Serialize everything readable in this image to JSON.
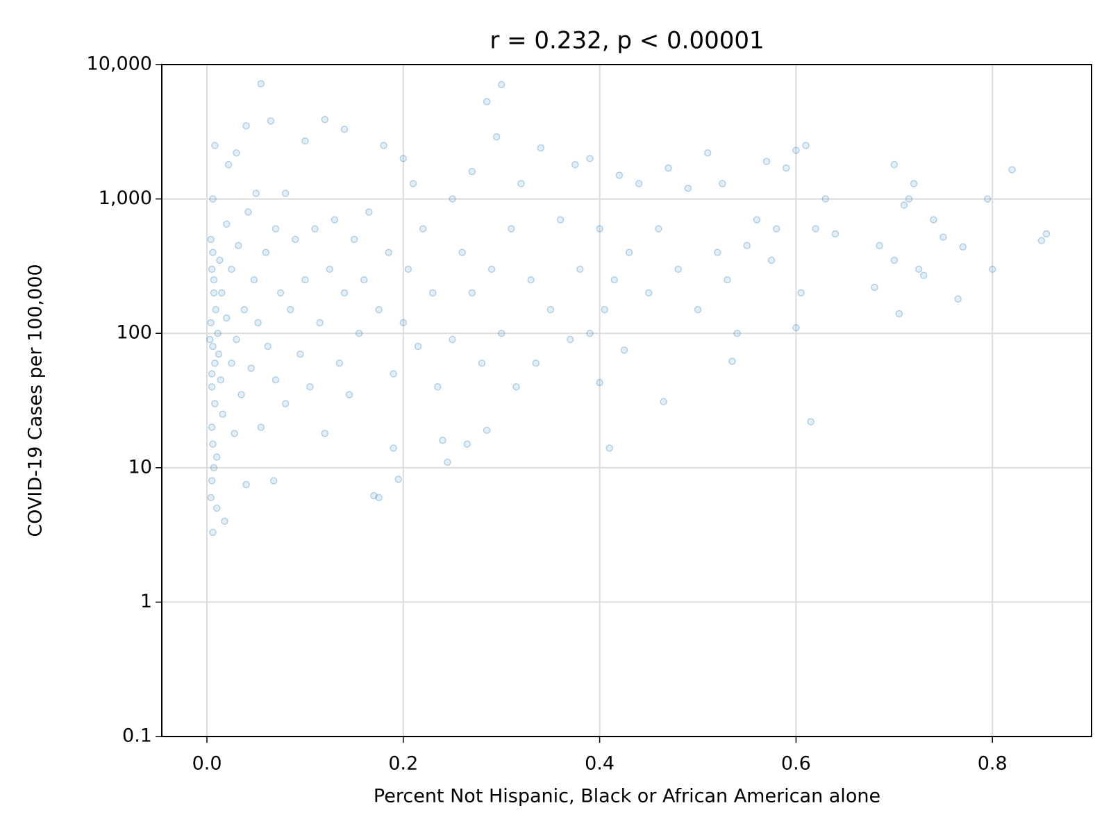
{
  "chart_data": {
    "type": "scatter",
    "title": "r = 0.232, p < 0.00001",
    "x_label": "Percent Not Hispanic, Black or African American alone",
    "y_label": "COVID-19 Cases per 100,000",
    "xlim": [
      -0.046,
      0.901
    ],
    "ylim": [
      0.1,
      10000
    ],
    "y_scale": "log",
    "grid": true,
    "xticks": [
      {
        "value": 0,
        "label": "0.0"
      },
      0.2,
      0.4,
      0.6,
      0.8
    ],
    "yticks": [
      0.1,
      1,
      10,
      100,
      {
        "value": 1000,
        "label": "1,000"
      },
      {
        "value": 10000,
        "label": "10,000"
      }
    ],
    "series": [
      {
        "color": "#1f77b4",
        "x": [
          0.005,
          0.006,
          0.004,
          0.007,
          0.005,
          0.006,
          0.008,
          0.005,
          0.006,
          0.007,
          0.004,
          0.006,
          0.008,
          0.009,
          0.003,
          0.005,
          0.007,
          0.004,
          0.006,
          0.008,
          0.005,
          0.01,
          0.012,
          0.011,
          0.013,
          0.01,
          0.015,
          0.014,
          0.016,
          0.018,
          0.02,
          0.02,
          0.022,
          0.025,
          0.025,
          0.028,
          0.03,
          0.03,
          0.032,
          0.035,
          0.038,
          0.04,
          0.04,
          0.042,
          0.045,
          0.048,
          0.05,
          0.052,
          0.055,
          0.055,
          0.06,
          0.062,
          0.065,
          0.068,
          0.07,
          0.07,
          0.075,
          0.08,
          0.08,
          0.085,
          0.09,
          0.095,
          0.1,
          0.1,
          0.105,
          0.11,
          0.115,
          0.12,
          0.12,
          0.125,
          0.13,
          0.135,
          0.14,
          0.14,
          0.145,
          0.15,
          0.155,
          0.16,
          0.165,
          0.17,
          0.175,
          0.175,
          0.18,
          0.185,
          0.19,
          0.19,
          0.195,
          0.2,
          0.2,
          0.205,
          0.21,
          0.215,
          0.22,
          0.23,
          0.235,
          0.24,
          0.245,
          0.25,
          0.25,
          0.26,
          0.265,
          0.27,
          0.27,
          0.28,
          0.285,
          0.285,
          0.29,
          0.295,
          0.3,
          0.3,
          0.31,
          0.315,
          0.32,
          0.33,
          0.335,
          0.34,
          0.35,
          0.36,
          0.37,
          0.375,
          0.38,
          0.39,
          0.39,
          0.4,
          0.4,
          0.405,
          0.41,
          0.415,
          0.42,
          0.425,
          0.43,
          0.44,
          0.45,
          0.46,
          0.465,
          0.47,
          0.48,
          0.49,
          0.5,
          0.51,
          0.52,
          0.525,
          0.53,
          0.535,
          0.54,
          0.55,
          0.56,
          0.57,
          0.575,
          0.58,
          0.59,
          0.6,
          0.6,
          0.605,
          0.61,
          0.615,
          0.62,
          0.63,
          0.64,
          0.68,
          0.685,
          0.7,
          0.7,
          0.705,
          0.71,
          0.715,
          0.72,
          0.725,
          0.73,
          0.74,
          0.75,
          0.765,
          0.77,
          0.795,
          0.8,
          0.82,
          0.85,
          0.855
        ],
        "values": [
          50,
          80,
          120,
          200,
          300,
          400,
          30,
          20,
          15,
          10,
          6,
          3.3,
          60,
          150,
          90,
          40,
          250,
          500,
          1000,
          2500,
          8,
          12,
          70,
          100,
          350,
          5,
          200,
          45,
          25,
          4,
          130,
          650,
          1800,
          60,
          300,
          18,
          90,
          2200,
          450,
          35,
          150,
          3500,
          7.5,
          800,
          55,
          250,
          1100,
          120,
          7200,
          20,
          400,
          80,
          3800,
          8,
          600,
          45,
          200,
          1100,
          30,
          150,
          500,
          70,
          2700,
          250,
          40,
          600,
          120,
          3900,
          18,
          300,
          700,
          60,
          3300,
          200,
          35,
          500,
          100,
          250,
          800,
          6.2,
          6,
          150,
          2500,
          400,
          50,
          14,
          8.2,
          2000,
          120,
          300,
          1300,
          80,
          600,
          200,
          40,
          16,
          11,
          1000,
          90,
          400,
          15,
          1600,
          200,
          60,
          5300,
          19,
          300,
          2900,
          7100,
          100,
          600,
          40,
          1300,
          250,
          60,
          2400,
          150,
          700,
          90,
          1800,
          300,
          2000,
          100,
          43,
          600,
          150,
          14,
          250,
          1500,
          75,
          400,
          1300,
          200,
          600,
          31,
          1700,
          300,
          1200,
          150,
          2200,
          400,
          1300,
          250,
          62,
          100,
          450,
          700,
          1900,
          350,
          600,
          1700,
          2300,
          110,
          200,
          2500,
          22,
          600,
          1000,
          550,
          220,
          450,
          1800,
          350,
          140,
          900,
          1000,
          1300,
          300,
          270,
          700,
          520,
          180,
          440,
          1000,
          300,
          1650,
          490,
          550
        ]
      }
    ]
  }
}
